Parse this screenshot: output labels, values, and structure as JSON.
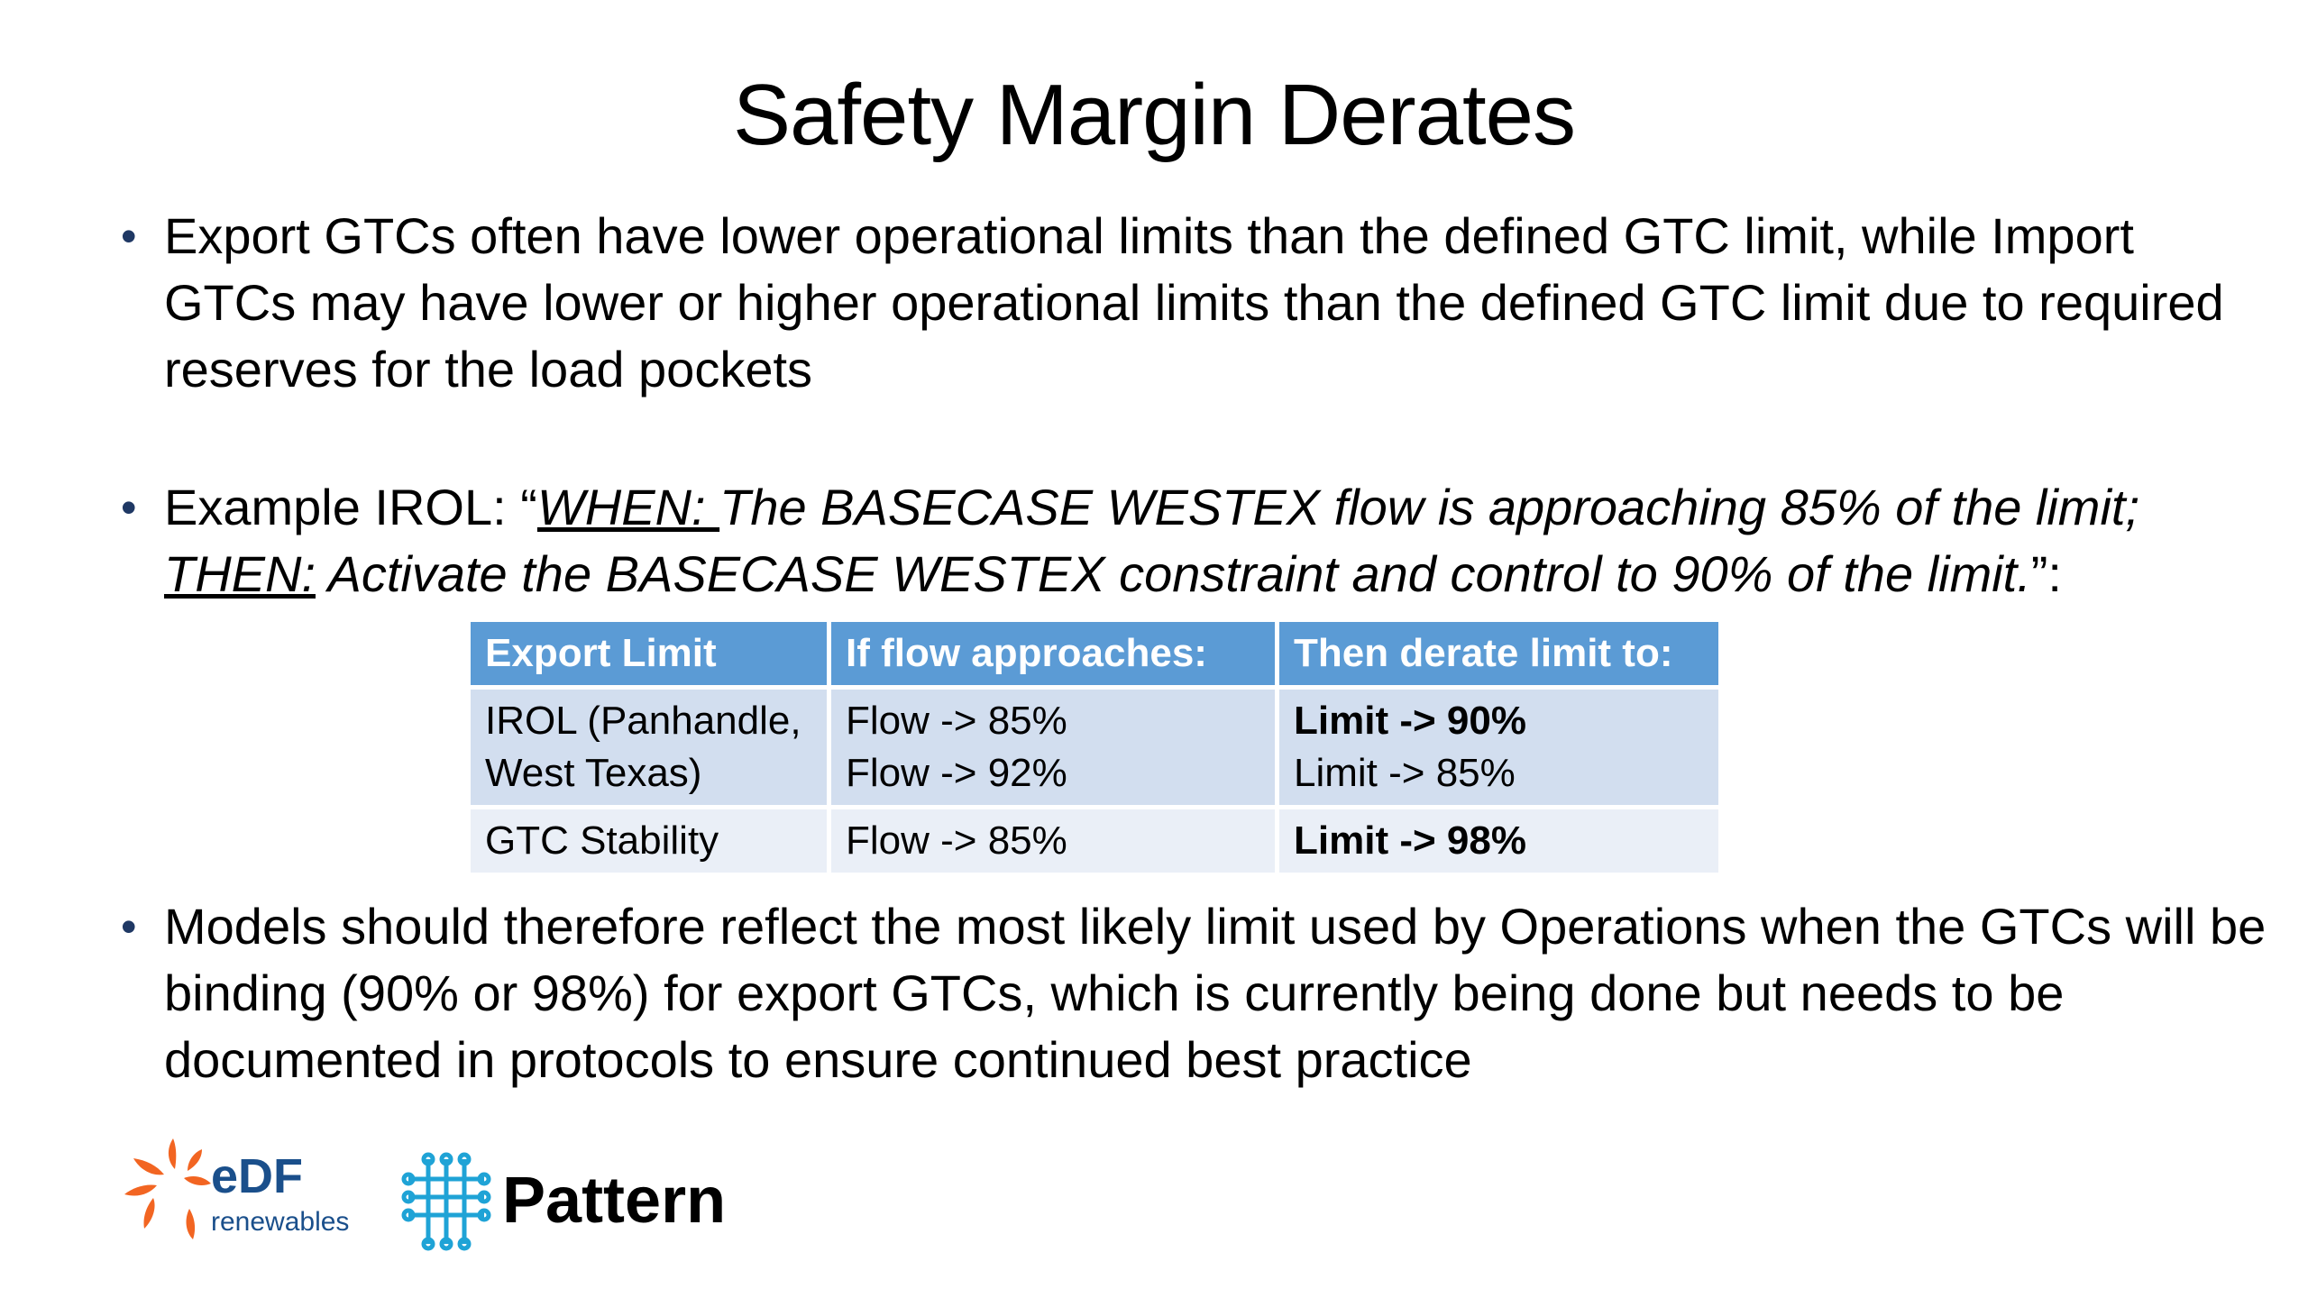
{
  "slide": {
    "title": "Safety Margin Derates",
    "bullet_glyph": "•",
    "bullet1": "Export GTCs often have lower operational limits than the defined GTC limit, while Import GTCs may have lower or higher operational limits than the defined GTC limit due to required reserves for the load pockets",
    "bullet2": {
      "prefix": "Example IROL: “",
      "when_label": "WHEN: ",
      "when_text": "The BASECASE WESTEX flow is approaching 85% of the limit; ",
      "then_label": "THEN:",
      "then_text": " Activate the BASECASE WESTEX constraint and control to 90% of the limit.",
      "suffix": "”:"
    },
    "bullet3": "Models should therefore reflect the most likely limit used by Operations when the GTCs will be binding (90% or 98%) for export GTCs, which is currently being done but needs to be documented in protocols to ensure continued best practice"
  },
  "table": {
    "headers": [
      "Export Limit",
      "If flow approaches:",
      "Then derate limit to:"
    ],
    "rows": [
      {
        "export_limit": [
          "IROL (Panhandle,",
          "West Texas)"
        ],
        "flow": [
          "Flow -> 85%",
          "Flow -> 92%"
        ],
        "derate": [
          "Limit -> 90%",
          "Limit -> 85%"
        ]
      },
      {
        "export_limit": [
          "GTC Stability"
        ],
        "flow": [
          "Flow -> 85%"
        ],
        "derate": [
          "Limit -> 98%"
        ]
      }
    ]
  },
  "logos": {
    "edf": {
      "brand": "eDF",
      "sub": "renewables",
      "color_orange": "#f26522",
      "color_blue": "#1a4f8b"
    },
    "pattern": {
      "brand": "Pattern",
      "color_mark": "#1fa3d6",
      "color_text": "#000000"
    }
  },
  "colors": {
    "header_bg": "#5b9bd5",
    "row1_bg": "#d2deef",
    "row2_bg": "#eaeff7",
    "bullet": "#1f3864"
  }
}
